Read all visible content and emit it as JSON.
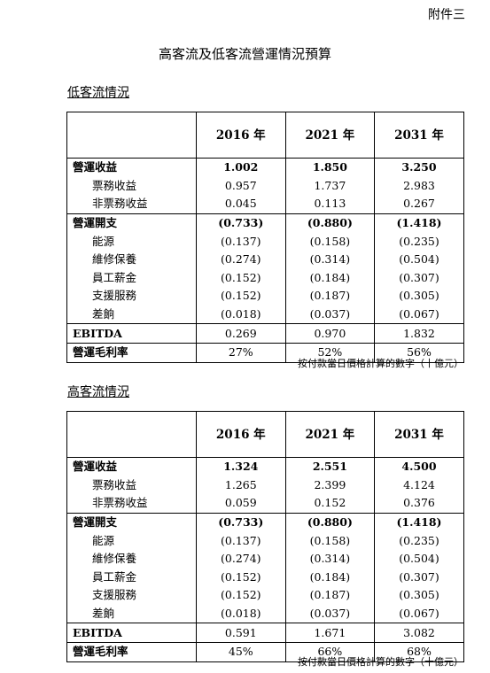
{
  "annex": "附件三",
  "title": "高客流及低客流營運情況預算",
  "years": [
    "2016 年",
    "2021 年",
    "2031 年"
  ],
  "note": "按付款當日價格計算的數字（十億元）",
  "low": {
    "section_title": "低客流情況",
    "rows": [
      {
        "label": "營運收益",
        "values": [
          "1.002",
          "1.850",
          "3.250"
        ],
        "kind": "group"
      },
      {
        "label": "票務收益",
        "values": [
          "0.957",
          "1.737",
          "2.983"
        ],
        "kind": "sub"
      },
      {
        "label": "非票務收益",
        "values": [
          "0.045",
          "0.113",
          "0.267"
        ],
        "kind": "sub"
      },
      {
        "label": "營運開支",
        "values": [
          "(0.733)",
          "(0.880)",
          "(1.418)"
        ],
        "kind": "group topline"
      },
      {
        "label": "能源",
        "values": [
          "(0.137)",
          "(0.158)",
          "(0.235)"
        ],
        "kind": "sub"
      },
      {
        "label": "維修保養",
        "values": [
          "(0.274)",
          "(0.314)",
          "(0.504)"
        ],
        "kind": "sub"
      },
      {
        "label": "員工薪金",
        "values": [
          "(0.152)",
          "(0.184)",
          "(0.307)"
        ],
        "kind": "sub"
      },
      {
        "label": "支援服務",
        "values": [
          "(0.152)",
          "(0.187)",
          "(0.305)"
        ],
        "kind": "sub"
      },
      {
        "label": "差餉",
        "values": [
          "(0.018)",
          "(0.037)",
          "(0.067)"
        ],
        "kind": "sub"
      },
      {
        "label": "EBITDA",
        "values": [
          "0.269",
          "0.970",
          "1.832"
        ],
        "kind": "ebitda"
      },
      {
        "label": "營運毛利率",
        "values": [
          "27%",
          "52%",
          "56%"
        ],
        "kind": "margin"
      }
    ]
  },
  "high": {
    "section_title": "高客流情況",
    "rows": [
      {
        "label": "營運收益",
        "values": [
          "1.324",
          "2.551",
          "4.500"
        ],
        "kind": "group"
      },
      {
        "label": "票務收益",
        "values": [
          "1.265",
          "2.399",
          "4.124"
        ],
        "kind": "sub"
      },
      {
        "label": "非票務收益",
        "values": [
          "0.059",
          "0.152",
          "0.376"
        ],
        "kind": "sub"
      },
      {
        "label": "營運開支",
        "values": [
          "(0.733)",
          "(0.880)",
          "(1.418)"
        ],
        "kind": "group topline"
      },
      {
        "label": "能源",
        "values": [
          "(0.137)",
          "(0.158)",
          "(0.235)"
        ],
        "kind": "sub"
      },
      {
        "label": "維修保養",
        "values": [
          "(0.274)",
          "(0.314)",
          "(0.504)"
        ],
        "kind": "sub"
      },
      {
        "label": "員工薪金",
        "values": [
          "(0.152)",
          "(0.184)",
          "(0.307)"
        ],
        "kind": "sub"
      },
      {
        "label": "支援服務",
        "values": [
          "(0.152)",
          "(0.187)",
          "(0.305)"
        ],
        "kind": "sub"
      },
      {
        "label": "差餉",
        "values": [
          "(0.018)",
          "(0.037)",
          "(0.067)"
        ],
        "kind": "sub"
      },
      {
        "label": "EBITDA",
        "values": [
          "0.591",
          "1.671",
          "3.082"
        ],
        "kind": "ebitda"
      },
      {
        "label": "營運毛利率",
        "values": [
          "45%",
          "66%",
          "68%"
        ],
        "kind": "margin"
      }
    ]
  }
}
